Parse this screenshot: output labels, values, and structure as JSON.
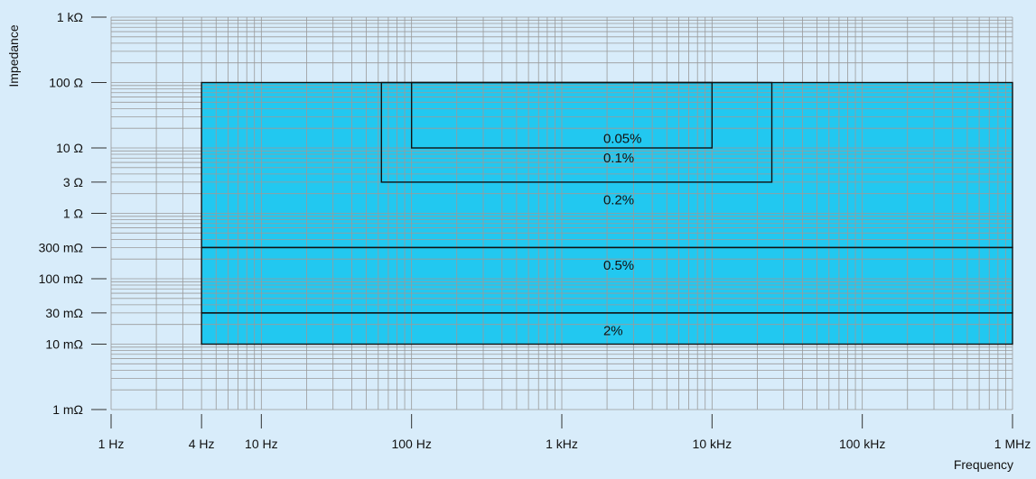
{
  "chart_data": {
    "type": "area",
    "title": "",
    "xlabel": "Frequency",
    "ylabel": "Impedance",
    "x_scale": "log",
    "y_scale": "log",
    "x_unit": "Hz",
    "y_unit": "ohm",
    "xlim": [
      1,
      1000000
    ],
    "ylim": [
      0.001,
      1000
    ],
    "grid": true,
    "x_ticks": [
      {
        "value": 1,
        "label": "1 Hz"
      },
      {
        "value": 4,
        "label": "4 Hz"
      },
      {
        "value": 10,
        "label": "10 Hz"
      },
      {
        "value": 100,
        "label": "100 Hz"
      },
      {
        "value": 1000,
        "label": "1 kHz"
      },
      {
        "value": 10000,
        "label": "10 kHz"
      },
      {
        "value": 100000,
        "label": "100 kHz"
      },
      {
        "value": 1000000,
        "label": "1 MHz"
      }
    ],
    "y_ticks": [
      {
        "value": 1000,
        "label": "1 kΩ"
      },
      {
        "value": 100,
        "label": "100 Ω"
      },
      {
        "value": 10,
        "label": "10 Ω"
      },
      {
        "value": 3,
        "label": "3 Ω"
      },
      {
        "value": 1,
        "label": "1 Ω"
      },
      {
        "value": 0.3,
        "label": "300 mΩ"
      },
      {
        "value": 0.1,
        "label": "100 mΩ"
      },
      {
        "value": 0.03,
        "label": "30 mΩ"
      },
      {
        "value": 0.01,
        "label": "10 mΩ"
      },
      {
        "value": 0.001,
        "label": "1 mΩ"
      }
    ],
    "regions": [
      {
        "label": "0.05%",
        "x": [
          100,
          10000
        ],
        "y": [
          10,
          100
        ],
        "label_at": [
          1600,
          14
        ]
      },
      {
        "label": "0.1%",
        "x": [
          63,
          25000
        ],
        "y": [
          3,
          100
        ],
        "label_at": [
          1600,
          7.1
        ]
      },
      {
        "label": "0.2%",
        "x": [
          4,
          1000000
        ],
        "y": [
          0.3,
          100
        ],
        "label_at": [
          1600,
          1.6
        ]
      },
      {
        "label": "0.5%",
        "x": [
          4,
          1000000
        ],
        "y": [
          0.03,
          0.3
        ],
        "label_at": [
          1600,
          0.16
        ]
      },
      {
        "label": "2%",
        "x": [
          4,
          1000000
        ],
        "y": [
          0.01,
          0.03
        ],
        "label_at": [
          1600,
          0.016
        ]
      }
    ],
    "colors": {
      "background": "#d8ecfa",
      "fill": "#22c8f0",
      "grid": "#9a9a9a",
      "outline": "#111111"
    }
  }
}
